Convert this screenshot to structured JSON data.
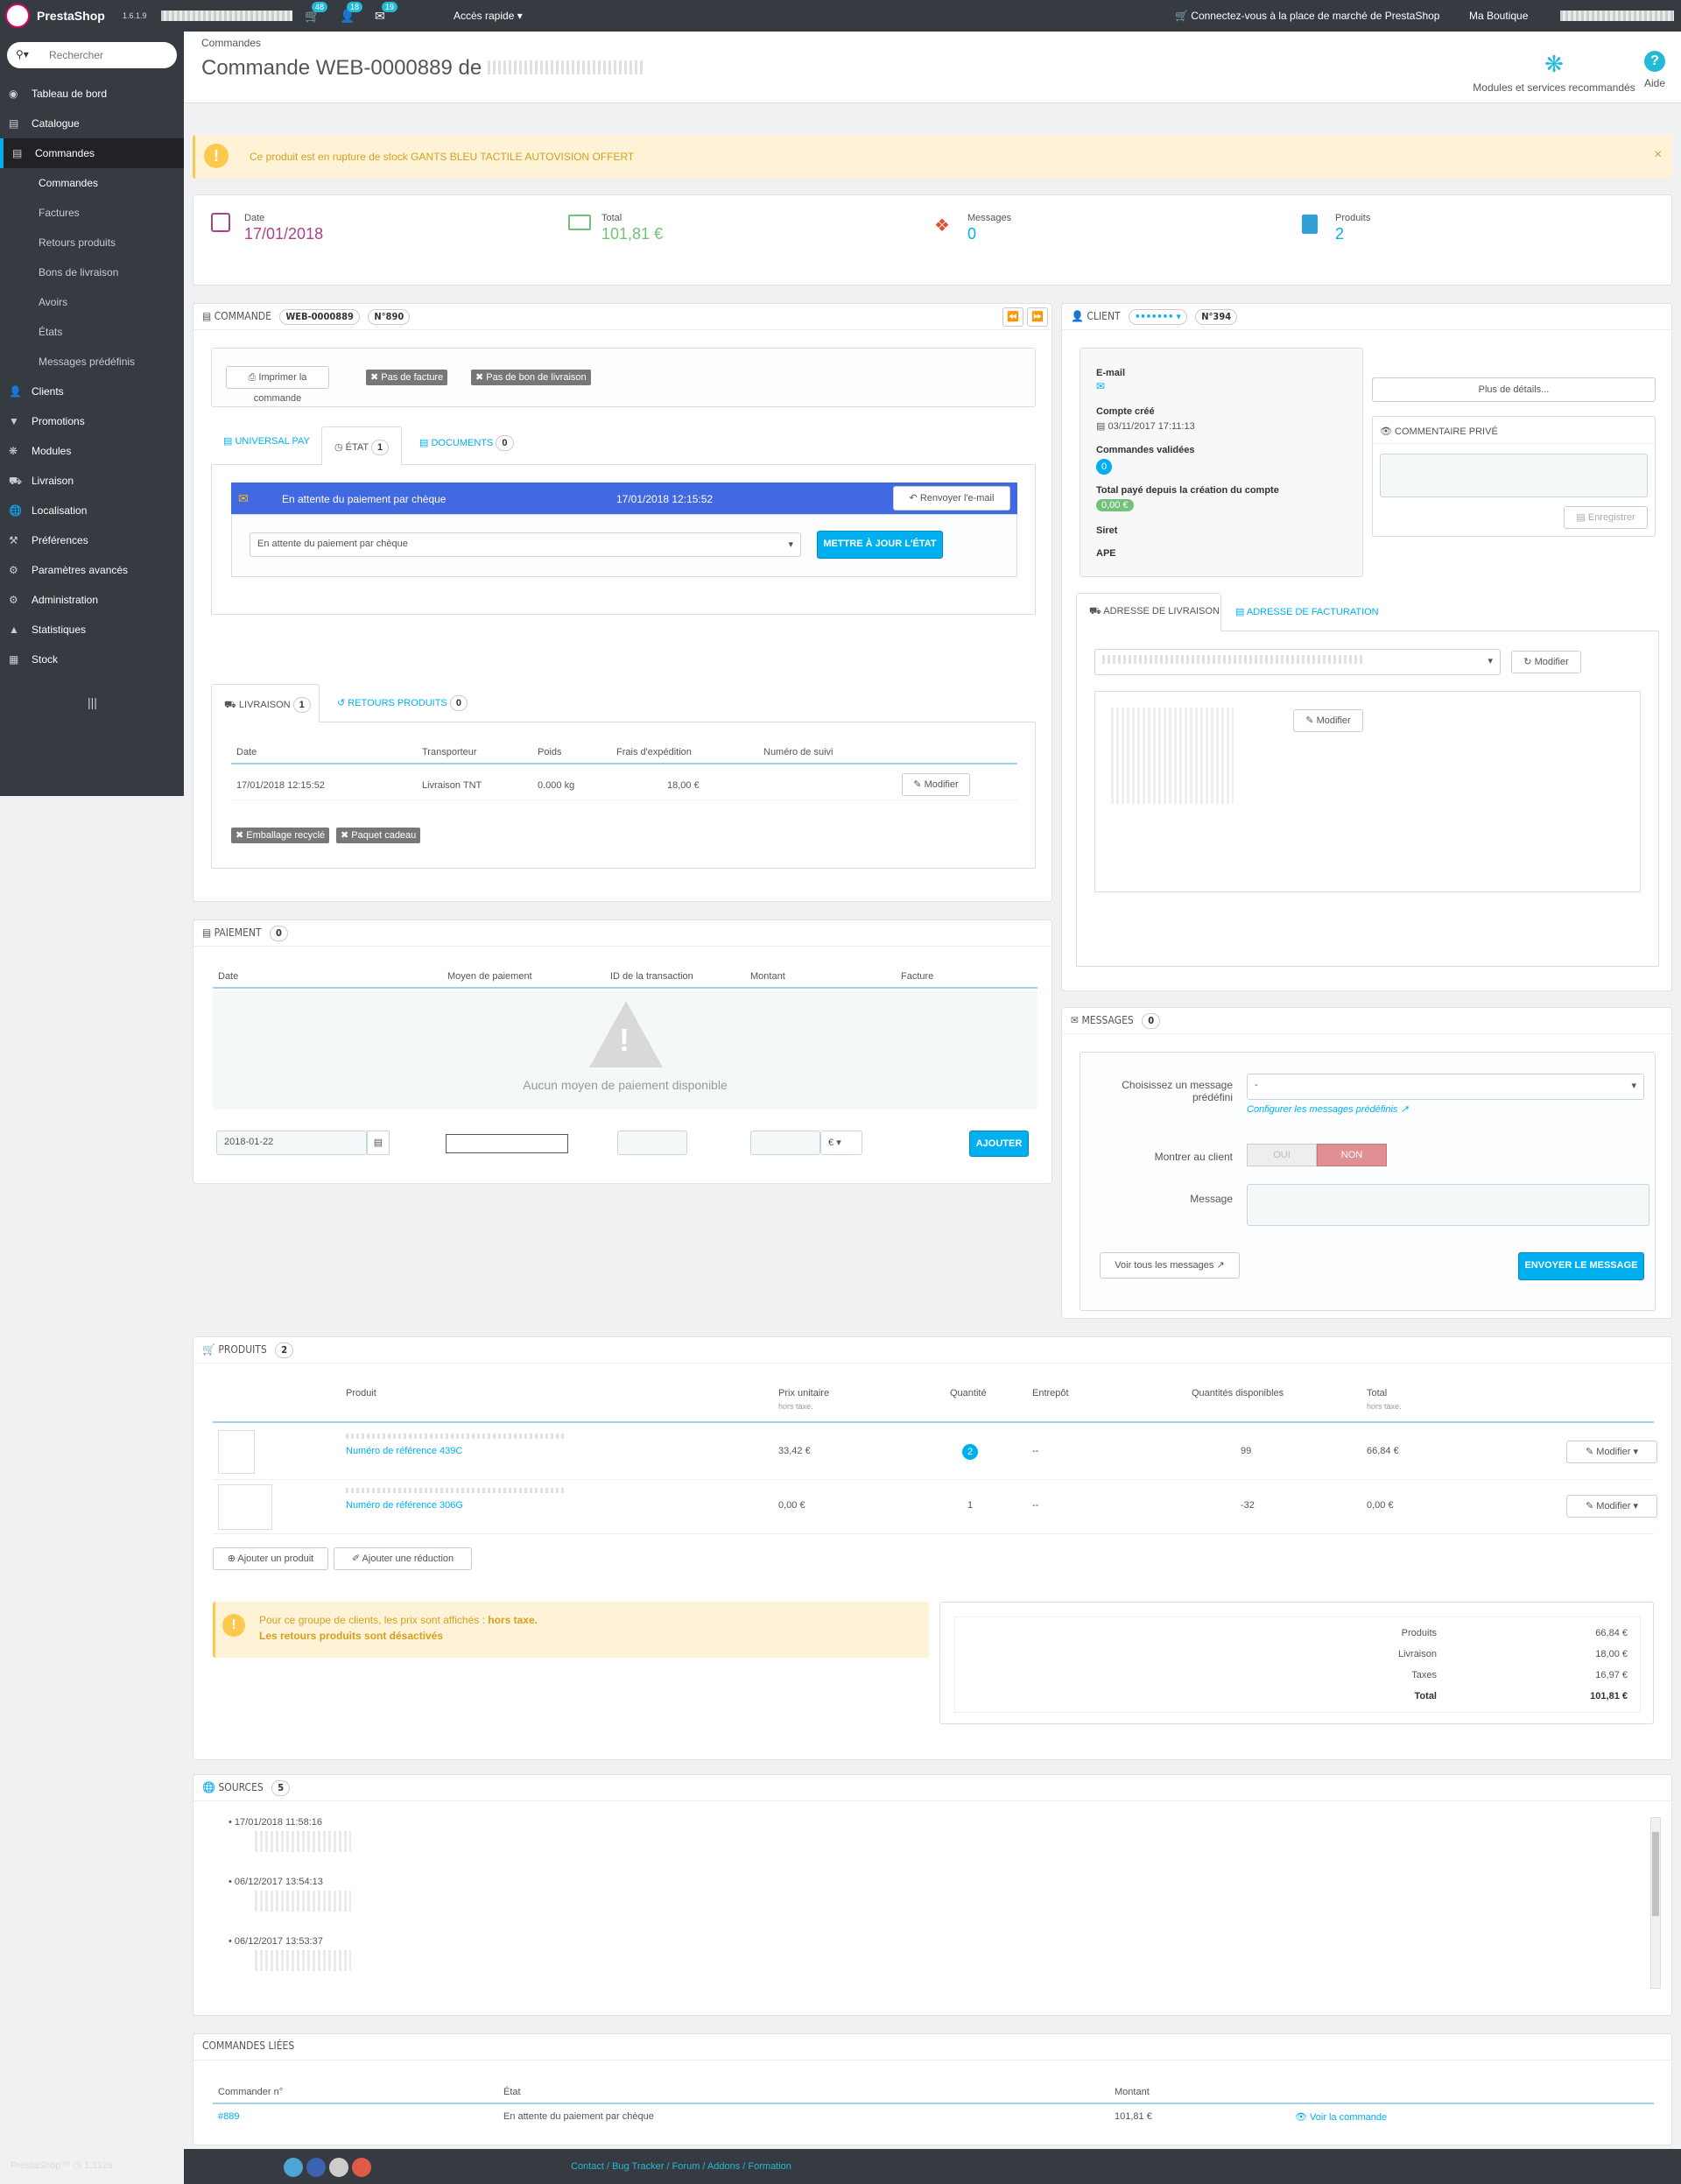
{
  "topbar": {
    "brand": "PrestaShop",
    "version": "1.6.1.9",
    "cart_count": "48",
    "customers_count": "18",
    "messages_count": "19",
    "quick_access": "Accès rapide",
    "marketplace": "Connectez-vous à la place de marché de PrestaShop",
    "shop": "Ma Boutique"
  },
  "sidebar": {
    "search_placeholder": "Rechercher",
    "items": [
      {
        "label": "Tableau de bord",
        "icon": "dashboard-icon"
      },
      {
        "label": "Catalogue",
        "icon": "catalog-icon"
      },
      {
        "label": "Commandes",
        "icon": "orders-icon"
      },
      {
        "label": "Clients",
        "icon": "users-icon"
      },
      {
        "label": "Promotions",
        "icon": "tag-icon"
      },
      {
        "label": "Modules",
        "icon": "puzzle-icon"
      },
      {
        "label": "Livraison",
        "icon": "truck-icon"
      },
      {
        "label": "Localisation",
        "icon": "globe-icon"
      },
      {
        "label": "Préférences",
        "icon": "wrench-icon"
      },
      {
        "label": "Paramètres avancés",
        "icon": "gears-icon"
      },
      {
        "label": "Administration",
        "icon": "gear-icon"
      },
      {
        "label": "Statistiques",
        "icon": "chart-icon"
      },
      {
        "label": "Stock",
        "icon": "box-icon"
      }
    ],
    "sub_items": [
      "Commandes",
      "Factures",
      "Retours produits",
      "Bons de livraison",
      "Avoirs",
      "États",
      "Messages prédéfinis"
    ]
  },
  "header": {
    "breadcrumb": "Commandes",
    "title": "Commande WEB-0000889 de",
    "modules_label": "Modules et services recommandés",
    "help_label": "Aide"
  },
  "alert": {
    "text": "Ce produit est en rupture de stock GANTS BLEU TACTILE AUTOVISION OFFERT",
    "close": "×"
  },
  "kpi": [
    {
      "label": "Date",
      "value": "17/01/2018"
    },
    {
      "label": "Total",
      "value": "101,81 €"
    },
    {
      "label": "Messages",
      "value": "0"
    },
    {
      "label": "Produits",
      "value": "2"
    }
  ],
  "order": {
    "heading": "COMMANDE",
    "reference": "WEB-0000889",
    "number": "N°890",
    "print": "Imprimer la commande",
    "no_invoice": "Pas de facture",
    "no_delivery": "Pas de bon de livraison",
    "tabs": [
      {
        "label": "UNIVERSAL PAY"
      },
      {
        "label": "ÉTAT",
        "count": "1"
      },
      {
        "label": "DOCUMENTS",
        "count": "0"
      }
    ],
    "state_row": {
      "status": "En attente du paiement par chèque",
      "date": "17/01/2018 12:15:52",
      "resend": "Renvoyer l'e-mail"
    },
    "state_select": "En attente du paiement par chèque",
    "update_state": "METTRE À JOUR L'ÉTAT",
    "shipping_tabs": [
      {
        "label": "LIVRAISON",
        "count": "1"
      },
      {
        "label": "RETOURS PRODUITS",
        "count": "0"
      }
    ],
    "shipping_headers": [
      "Date",
      "Transporteur",
      "Poids",
      "Frais d'expédition",
      "Numéro de suivi"
    ],
    "shipping_row": {
      "date": "17/01/2018 12:15:52",
      "carrier": "Livraison TNT",
      "weight": "0.000 kg",
      "cost": "18,00 €",
      "edit": "Modifier"
    },
    "recycled": "Emballage recyclé",
    "gift": "Paquet cadeau"
  },
  "payment": {
    "heading": "PAIEMENT",
    "count": "0",
    "headers": [
      "Date",
      "Moyen de paiement",
      "ID de la transaction",
      "Montant",
      "Facture"
    ],
    "empty": "Aucun moyen de paiement disponible",
    "date_value": "2018-01-22",
    "currency": "€",
    "add": "AJOUTER"
  },
  "client": {
    "heading": "CLIENT",
    "number": "N°394",
    "more_details": "Plus de détails...",
    "email_label": "E-mail",
    "created_label": "Compte créé",
    "created_value": "03/11/2017 17:11:13",
    "validated_label": "Commandes validées",
    "validated_count": "0",
    "total_paid_label": "Total payé depuis la création du compte",
    "total_paid_value": "0,00 €",
    "siret_label": "Siret",
    "ape_label": "APE",
    "private_comment": "COMMENTAIRE PRIVÉ",
    "save": "Enregistrer",
    "address_tabs": [
      "ADRESSE DE LIVRAISON",
      "ADRESSE DE FACTURATION"
    ],
    "modify": "Modifier"
  },
  "messages": {
    "heading": "MESSAGES",
    "count": "0",
    "choose_label": "Choisissez un message prédéfini",
    "select_value": "-",
    "configure": "Configurer les messages prédéfinis",
    "show_label": "Montrer au client",
    "yes": "OUI",
    "no": "NON",
    "message_label": "Message",
    "view_all": "Voir tous les messages",
    "send": "ENVOYER LE MESSAGE"
  },
  "products": {
    "heading": "PRODUITS",
    "count": "2",
    "headers": {
      "product": "Produit",
      "unit_price": "Prix unitaire",
      "unit_price_sub": "hors taxe.",
      "quantity": "Quantité",
      "warehouse": "Entrepôt",
      "available": "Quantités disponibles",
      "total": "Total",
      "total_sub": "hors taxe."
    },
    "rows": [
      {
        "ref": "Numéro de référence 439C",
        "price": "33,42 €",
        "qty": "2",
        "warehouse": "--",
        "available": "99",
        "total": "66,84 €",
        "edit": "Modifier"
      },
      {
        "ref": "Numéro de référence 306G",
        "price": "0,00 €",
        "qty": "1",
        "warehouse": "--",
        "available": "-32",
        "total": "0,00 €",
        "edit": "Modifier"
      }
    ],
    "add_product": "Ajouter un produit",
    "add_discount": "Ajouter une réduction",
    "warning_line1": "Pour ce groupe de clients, les prix sont affichés :",
    "warning_bold": "hors taxe.",
    "warning_line2": "Les retours produits sont désactivés",
    "totals": [
      {
        "label": "Produits",
        "value": "66,84 €"
      },
      {
        "label": "Livraison",
        "value": "18,00 €"
      },
      {
        "label": "Taxes",
        "value": "16,97 €"
      },
      {
        "label": "Total",
        "value": "101,81 €"
      }
    ]
  },
  "sources": {
    "heading": "SOURCES",
    "count": "5",
    "dates": [
      "17/01/2018 11:58:16",
      "06/12/2017 13:54:13",
      "06/12/2017 13:53:37"
    ]
  },
  "linked": {
    "heading": "COMMANDES LIÉES",
    "headers": [
      "Commander n°",
      "État",
      "Montant"
    ],
    "row": {
      "number": "#889",
      "state": "En attente du paiement par chèque",
      "amount": "101,81 €",
      "view": "Voir la commande"
    }
  },
  "footer": {
    "brand": "PrestaShop™",
    "time": "1.112s",
    "links": [
      "Contact",
      "Bug Tracker",
      "Forum",
      "Addons",
      "Formation"
    ]
  },
  "colors": {
    "accent": "#00aff0",
    "sidebar": "#363a41",
    "state_row": "#4169e1",
    "warning_bg": "#fff3d7"
  }
}
